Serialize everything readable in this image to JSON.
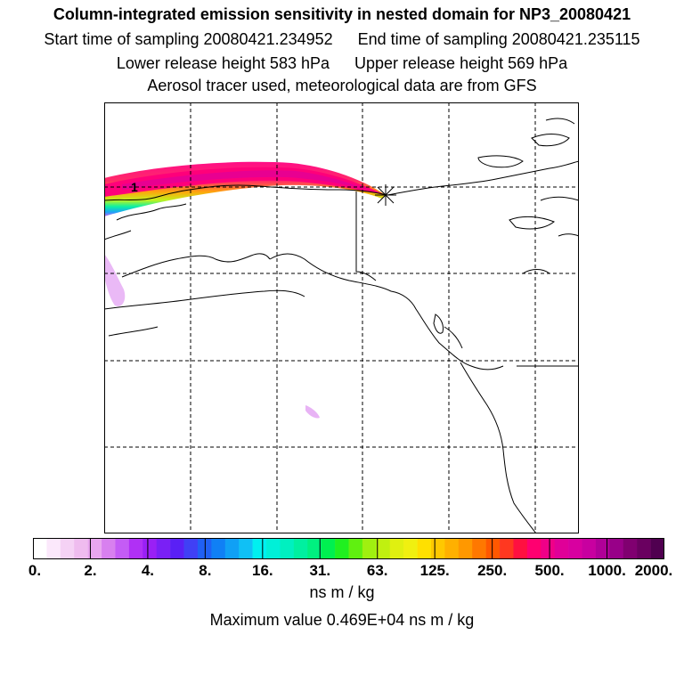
{
  "header": {
    "title": "Column-integrated emission sensitivity in nested domain for NP3_20080421",
    "start_label": "Start time of sampling 20080421.234952",
    "end_label": "End time of sampling 20080421.235115",
    "lower_label": "Lower release height  583 hPa",
    "upper_label": "Upper release height  569 hPa",
    "tracer_label": "Aerosol tracer used, meteorological data are from GFS"
  },
  "map": {
    "grid_style": "dashed",
    "release_marker": "star",
    "marker_label": "1",
    "region": "Alaska, western Canada and northeast Pacific"
  },
  "colorbar": {
    "tick_labels": [
      "0.",
      "2.",
      "4.",
      "8.",
      "16.",
      "31.",
      "63.",
      "125.",
      "250.",
      "500.",
      "1000.",
      "2000."
    ],
    "colors": [
      "#ffffff",
      "#fbe8fb",
      "#f5d2f5",
      "#efbcef",
      "#e9a6ef",
      "#d880ef",
      "#c45cf5",
      "#b030f5",
      "#9a20f5",
      "#7a20f5",
      "#5a20f5",
      "#4040f5",
      "#2060f5",
      "#1080f5",
      "#10a0f5",
      "#10c0f5",
      "#00f0f0",
      "#00f0d8",
      "#00f0c0",
      "#00f0a0",
      "#00f080",
      "#00f050",
      "#20f020",
      "#60f010",
      "#a0f010",
      "#c0f010",
      "#e0f010",
      "#f0f010",
      "#ffe000",
      "#ffc800",
      "#ffb000",
      "#ff9800",
      "#ff7800",
      "#ff5800",
      "#ff3820",
      "#ff1040",
      "#ff0070",
      "#f00088",
      "#e00098",
      "#d800a0",
      "#c800a0",
      "#b00098",
      "#980088",
      "#800070",
      "#6a0060",
      "#500050"
    ],
    "units": "ns m / kg",
    "max_label": "Maximum value  0.469E+04 ns m / kg"
  }
}
